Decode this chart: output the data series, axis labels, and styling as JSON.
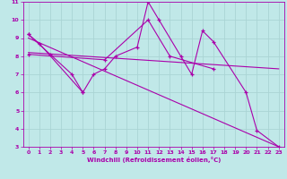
{
  "xlabel": "Windchill (Refroidissement éolien,°C)",
  "background_color": "#c0e8e8",
  "grid_color": "#aad4d4",
  "line_color": "#aa00aa",
  "xlim": [
    -0.5,
    23.5
  ],
  "ylim": [
    3,
    11
  ],
  "xticks": [
    0,
    1,
    2,
    3,
    4,
    5,
    6,
    7,
    8,
    9,
    10,
    11,
    12,
    13,
    14,
    15,
    16,
    17,
    18,
    19,
    20,
    21,
    22,
    23
  ],
  "yticks": [
    3,
    4,
    5,
    6,
    7,
    8,
    9,
    10,
    11
  ],
  "series": [
    {
      "x": [
        0,
        1,
        5
      ],
      "y": [
        9.2,
        8.7,
        6.0
      ],
      "markers": true
    },
    {
      "x": [
        0,
        2,
        4,
        5,
        6,
        7,
        8,
        10,
        11,
        12,
        14,
        15,
        16,
        17,
        20,
        21,
        23
      ],
      "y": [
        9.2,
        8.1,
        7.0,
        6.0,
        7.0,
        7.3,
        8.0,
        8.5,
        11.0,
        10.0,
        8.0,
        7.0,
        9.4,
        8.8,
        6.0,
        3.9,
        3.0
      ],
      "markers": true
    },
    {
      "x": [
        0,
        23
      ],
      "y": [
        9.0,
        3.0
      ],
      "markers": false
    },
    {
      "x": [
        0,
        7,
        11,
        13,
        17
      ],
      "y": [
        8.1,
        7.8,
        10.0,
        8.0,
        7.3
      ],
      "markers": true
    },
    {
      "x": [
        0,
        23
      ],
      "y": [
        8.2,
        7.3
      ],
      "markers": false
    }
  ]
}
